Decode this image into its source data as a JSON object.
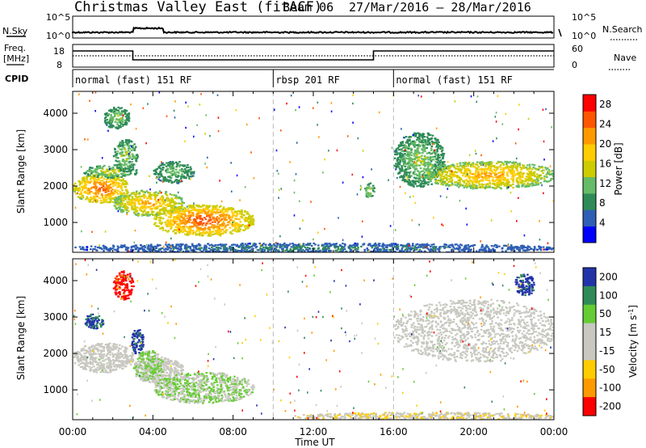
{
  "header": {
    "title": "Christmas Valley East (fitACF)",
    "beam": "Beam 06",
    "dates": "27/Mar/2016 – 28/Mar/2016"
  },
  "colors": {
    "power_scale": [
      "#0000ff",
      "#2e5fb4",
      "#2e8b57",
      "#66bb66",
      "#cccc00",
      "#ffcc00",
      "#ff9900",
      "#ff5500",
      "#ff0000"
    ],
    "velocity_scale": [
      "#2233aa",
      "#2e8b57",
      "#66cc33",
      "#c8c8c0",
      "#c8c8c0",
      "#ffcc00",
      "#ff9900",
      "#ff0000"
    ]
  },
  "params_panel": {
    "nsky_label": "N.Sky",
    "nsky_ticks": [
      "10^5",
      "10^0"
    ],
    "nsearch_label": "N.Search",
    "nsearch_ticks": [
      "10^5",
      "10^0"
    ],
    "freq_label": "Freq.",
    "freq_unit": "[MHz]",
    "freq_ticks": [
      "18",
      "8"
    ],
    "nave_label": "Nave",
    "nave_ticks": [
      "60",
      "0"
    ],
    "cpid_label": "CPID",
    "cpid_segments": [
      {
        "label": "normal (fast) 151 RF",
        "start_hour": 0,
        "end_hour": 10
      },
      {
        "label": "rbsp 201 RF",
        "start_hour": 10,
        "end_hour": 16
      },
      {
        "label": "normal (fast) 151 RF",
        "start_hour": 16,
        "end_hour": 24
      }
    ]
  },
  "x_axis": {
    "label": "Time UT",
    "ticks": [
      "00:00",
      "04:00",
      "08:00",
      "12:00",
      "16:00",
      "20:00",
      "00:00"
    ]
  },
  "chart_data": [
    {
      "type": "heatmap",
      "title": "Power",
      "ylabel": "Slant Range [km]",
      "xlabel": "Time UT",
      "xlim": [
        0,
        24
      ],
      "ylim": [
        180,
        4600
      ],
      "y_ticks": [
        1000,
        2000,
        3000,
        4000
      ],
      "colorbar": {
        "label": "Power [dB]",
        "ticks": [
          4,
          8,
          12,
          16,
          20,
          24,
          28
        ],
        "range": [
          0,
          30
        ]
      },
      "regions": [
        {
          "x": [
            0,
            2.8
          ],
          "y": [
            1550,
            2350
          ],
          "value": 26
        },
        {
          "x": [
            0.5,
            3.2
          ],
          "y": [
            2250,
            2600
          ],
          "value": 16
        },
        {
          "x": [
            2.0,
            3.2
          ],
          "y": [
            2400,
            3300
          ],
          "value": 15
        },
        {
          "x": [
            1.5,
            2.8
          ],
          "y": [
            3600,
            4200
          ],
          "value": 14
        },
        {
          "x": [
            2.0,
            5.5
          ],
          "y": [
            1200,
            1900
          ],
          "value": 22
        },
        {
          "x": [
            4.0,
            9.0
          ],
          "y": [
            650,
            1500
          ],
          "value": 27
        },
        {
          "x": [
            4.0,
            6.0
          ],
          "y": [
            2100,
            2700
          ],
          "value": 13
        },
        {
          "x": [
            14.5,
            15.0
          ],
          "y": [
            1700,
            2100
          ],
          "value": 16
        },
        {
          "x": [
            16.0,
            18.5
          ],
          "y": [
            2000,
            3500
          ],
          "value": 14
        },
        {
          "x": [
            17.5,
            24.0
          ],
          "y": [
            1950,
            2700
          ],
          "value": 22
        },
        {
          "x": [
            0,
            24.0
          ],
          "y": [
            180,
            450
          ],
          "value": 8
        }
      ]
    },
    {
      "type": "heatmap",
      "title": "Velocity",
      "ylabel": "Slant Range [km]",
      "xlabel": "Time UT",
      "xlim": [
        0,
        24
      ],
      "ylim": [
        180,
        4600
      ],
      "y_ticks": [
        1000,
        2000,
        3000,
        4000
      ],
      "colorbar": {
        "label": "Velocity [m s^-1]",
        "ticks": [
          200,
          100,
          50,
          15,
          -15,
          -50,
          -100,
          -200
        ],
        "range": [
          -250,
          250
        ]
      },
      "regions": [
        {
          "x": [
            0,
            3.0
          ],
          "y": [
            1500,
            2300
          ],
          "value": 0
        },
        {
          "x": [
            2.0,
            3.0
          ],
          "y": [
            3500,
            4300
          ],
          "value": -220
        },
        {
          "x": [
            2.9,
            3.5
          ],
          "y": [
            2000,
            2700
          ],
          "value": 220
        },
        {
          "x": [
            3.0,
            5.5
          ],
          "y": [
            1200,
            1900
          ],
          "value": 0
        },
        {
          "x": [
            3.0,
            4.5
          ],
          "y": [
            1300,
            2100
          ],
          "value": 70
        },
        {
          "x": [
            4.0,
            9.0
          ],
          "y": [
            650,
            1500
          ],
          "value": 60
        },
        {
          "x": [
            0.5,
            1.5
          ],
          "y": [
            2700,
            3100
          ],
          "value": 200
        },
        {
          "x": [
            11.0,
            24.0
          ],
          "y": [
            180,
            400
          ],
          "value": -40
        },
        {
          "x": [
            16.0,
            24.0
          ],
          "y": [
            1800,
            3500
          ],
          "value": 0
        },
        {
          "x": [
            22.0,
            23.0
          ],
          "y": [
            3600,
            4200
          ],
          "value": 220
        }
      ]
    }
  ]
}
